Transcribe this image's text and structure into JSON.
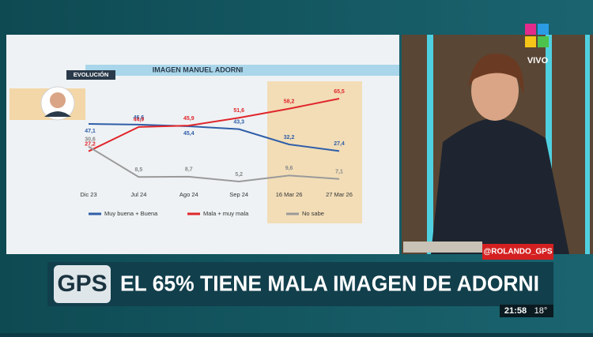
{
  "chart_data": {
    "type": "line",
    "title": "IMAGEN MANUEL ADORNI",
    "subtitle": "EVOLUCIÓN",
    "categories": [
      "Dic 23",
      "Jul 24",
      "Ago 24",
      "Sep 24",
      "16 Mar 26",
      "27 Mar 26"
    ],
    "series": [
      {
        "name": "Muy buena + Buena",
        "color": "#2f5ea8",
        "values": [
          47.1,
          46.6,
          45.4,
          43.3,
          32.2,
          27.4
        ],
        "value_labels": [
          "47,1",
          "46,6",
          "45,4",
          "43,3",
          "32,2",
          "27,4"
        ]
      },
      {
        "name": "Mala + muy mala",
        "color": "#e0262b",
        "values": [
          27.2,
          44.9,
          45.9,
          51.6,
          58.2,
          65.5
        ],
        "value_labels": [
          "27,2",
          "44,9",
          "45,9",
          "51,6",
          "58,2",
          "65,5"
        ]
      },
      {
        "name": "No sabe",
        "color": "#9a9a9a",
        "values": [
          30.6,
          8.5,
          8.7,
          5.2,
          9.6,
          7.1
        ],
        "value_labels": [
          "30,6",
          "8,5",
          "8,7",
          "5,2",
          "9,6",
          "7,1"
        ]
      }
    ]
  },
  "broadcast": {
    "live": "VIVO",
    "handle": "@ROLANDO_GPS",
    "show": "GPS",
    "headline": "EL 65% TIENE MALA IMAGEN DE ADORNI",
    "time": "21:58",
    "temperature": "18°"
  }
}
